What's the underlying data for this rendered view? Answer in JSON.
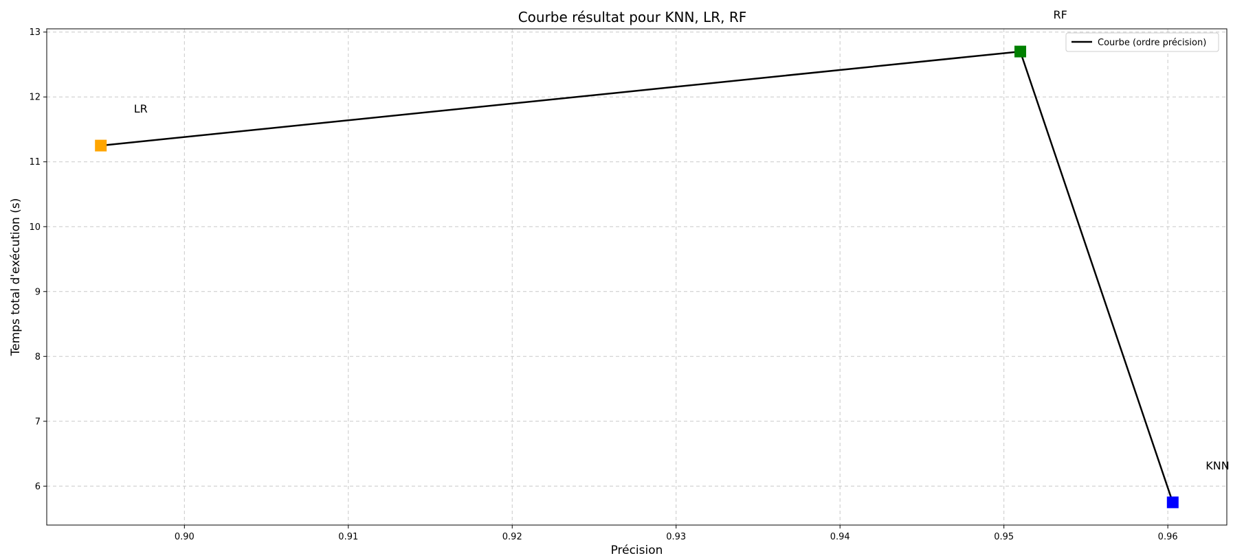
{
  "chart_data": {
    "type": "line",
    "title": "Courbe résultat pour KNN, LR, RF",
    "xlabel": "Précision",
    "ylabel": "Temps total d'exécution (s)",
    "xlim": [
      0.8916,
      0.9636
    ],
    "ylim": [
      5.4,
      13.05
    ],
    "xticks": [
      0.9,
      0.91,
      0.92,
      0.93,
      0.94,
      0.95,
      0.96
    ],
    "xtick_labels": [
      "0.90",
      "0.91",
      "0.92",
      "0.93",
      "0.94",
      "0.95",
      "0.96"
    ],
    "yticks": [
      6,
      7,
      8,
      9,
      10,
      11,
      12,
      13
    ],
    "ytick_labels": [
      "6",
      "7",
      "8",
      "9",
      "10",
      "11",
      "12",
      "13"
    ],
    "grid": true,
    "legend_position": "top-right",
    "series": [
      {
        "name": "Courbe (ordre précision)",
        "color": "#000000",
        "x": [
          0.8949,
          0.951,
          0.9603
        ],
        "y": [
          11.25,
          12.7,
          5.75
        ]
      }
    ],
    "points": [
      {
        "label": "LR",
        "x": 0.8949,
        "y": 11.25,
        "color": "#FFA500"
      },
      {
        "label": "RF",
        "x": 0.951,
        "y": 12.7,
        "color": "#008000"
      },
      {
        "label": "KNN",
        "x": 0.9603,
        "y": 5.75,
        "color": "#0000FF"
      }
    ]
  }
}
